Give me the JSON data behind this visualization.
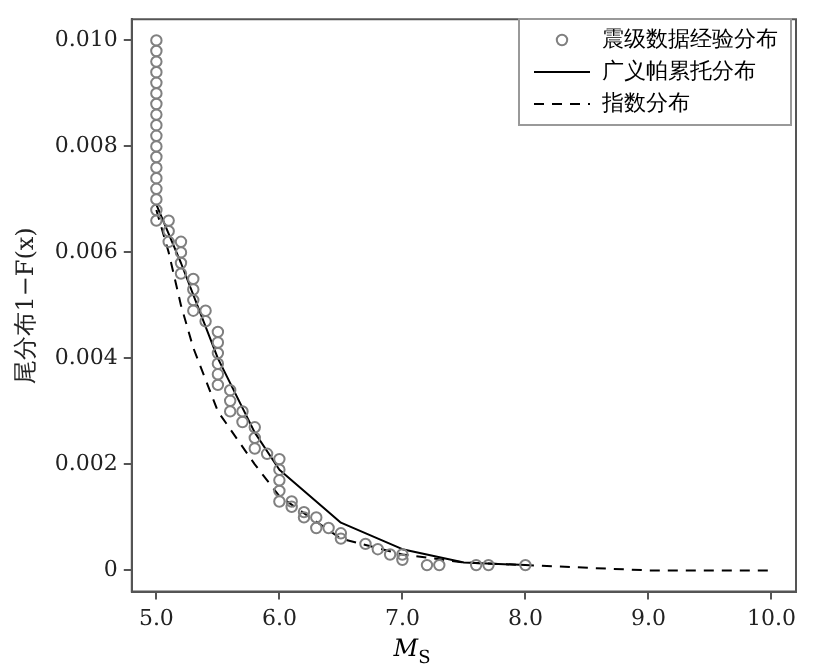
{
  "chart_data": {
    "type": "scatter",
    "xlabel": "M$_{S}$",
    "ylabel": "尾分布1−F(x)",
    "xlim": [
      4.8,
      10.2
    ],
    "xticks": [
      {
        "value": 5,
        "label": "5.0"
      },
      {
        "value": 6,
        "label": "6.0"
      },
      {
        "value": 7,
        "label": "7.0"
      },
      {
        "value": 8,
        "label": "8.0"
      },
      {
        "value": 9,
        "label": "9.0"
      },
      {
        "value": 10,
        "label": "10.0"
      }
    ],
    "ylim": [
      -0.0004,
      0.0104
    ],
    "yticks": [
      0,
      {
        "value": 0.002,
        "label": "0.002"
      },
      {
        "value": 0.004,
        "label": "0.004"
      },
      {
        "value": 0.006,
        "label": "0.006"
      },
      {
        "value": 0.008,
        "label": "0.008"
      },
      {
        "value": 0.01,
        "label": "0.010"
      }
    ],
    "grid": false,
    "legend": "top right",
    "series": [
      {
        "name": "震级数据经验分布",
        "type": "scatter",
        "marker": "circle",
        "color": "#808080",
        "x": [
          5,
          5,
          5,
          5,
          5,
          5,
          5,
          5,
          5,
          5,
          5,
          5,
          5,
          5,
          5,
          5,
          5,
          5,
          5.1,
          5.1,
          5.1,
          5.2,
          5.2,
          5.2,
          5.2,
          5.3,
          5.3,
          5.3,
          5.3,
          5.4,
          5.4,
          5.5,
          5.5,
          5.5,
          5.5,
          5.5,
          5.5,
          5.6,
          5.6,
          5.6,
          5.7,
          5.7,
          5.8,
          5.8,
          5.8,
          5.9,
          6,
          6,
          6,
          6,
          6,
          6.1,
          6.1,
          6.2,
          6.2,
          6.3,
          6.3,
          6.4,
          6.5,
          6.5,
          6.7,
          6.8,
          6.9,
          7,
          7,
          7.2,
          7.3,
          7.6,
          7.7,
          8
        ],
        "values": [
          0.0066,
          0.0068,
          0.007,
          0.0072,
          0.0074,
          0.0076,
          0.0078,
          0.008,
          0.0082,
          0.0084,
          0.0086,
          0.0088,
          0.009,
          0.0092,
          0.0094,
          0.0096,
          0.0098,
          0.01,
          0.0062,
          0.0064,
          0.0066,
          0.0056,
          0.0058,
          0.006,
          0.0062,
          0.0049,
          0.0051,
          0.0053,
          0.0055,
          0.0047,
          0.0049,
          0.0035,
          0.0037,
          0.0039,
          0.0041,
          0.0043,
          0.0045,
          0.003,
          0.0032,
          0.0034,
          0.0028,
          0.003,
          0.0023,
          0.0025,
          0.0027,
          0.0022,
          0.0013,
          0.0015,
          0.0017,
          0.0019,
          0.0021,
          0.0012,
          0.0013,
          0.001,
          0.0011,
          0.0008,
          0.001,
          0.0008,
          0.0006,
          0.0007,
          0.0005,
          0.0004,
          0.0003,
          0.0002,
          0.0003,
          0.0001,
          0.0001,
          0.0001,
          0.0001,
          0.0001
        ]
      },
      {
        "name": "广义帕累托分布",
        "type": "line",
        "line_style": "solid",
        "marker": "none",
        "color": "#000000",
        "x": [
          5,
          5.2,
          5.5,
          5.8,
          6,
          6.5,
          7,
          7.5,
          8
        ],
        "values": [
          0.0069,
          0.0058,
          0.004,
          0.0026,
          0.0019,
          0.0009,
          0.0004,
          0.00015,
          0.0001
        ]
      },
      {
        "name": "指数分布",
        "type": "line",
        "line_style": "dashed",
        "marker": "none",
        "color": "#000000",
        "x": [
          5,
          5.1,
          5.2,
          5.3,
          5.5,
          5.8,
          6,
          6.5,
          7,
          7.5,
          8,
          9,
          10
        ],
        "values": [
          0.0068,
          0.006,
          0.005,
          0.0042,
          0.003,
          0.002,
          0.0014,
          0.0006,
          0.0003,
          0.00015,
          0.0001,
          0,
          0
        ]
      }
    ]
  }
}
